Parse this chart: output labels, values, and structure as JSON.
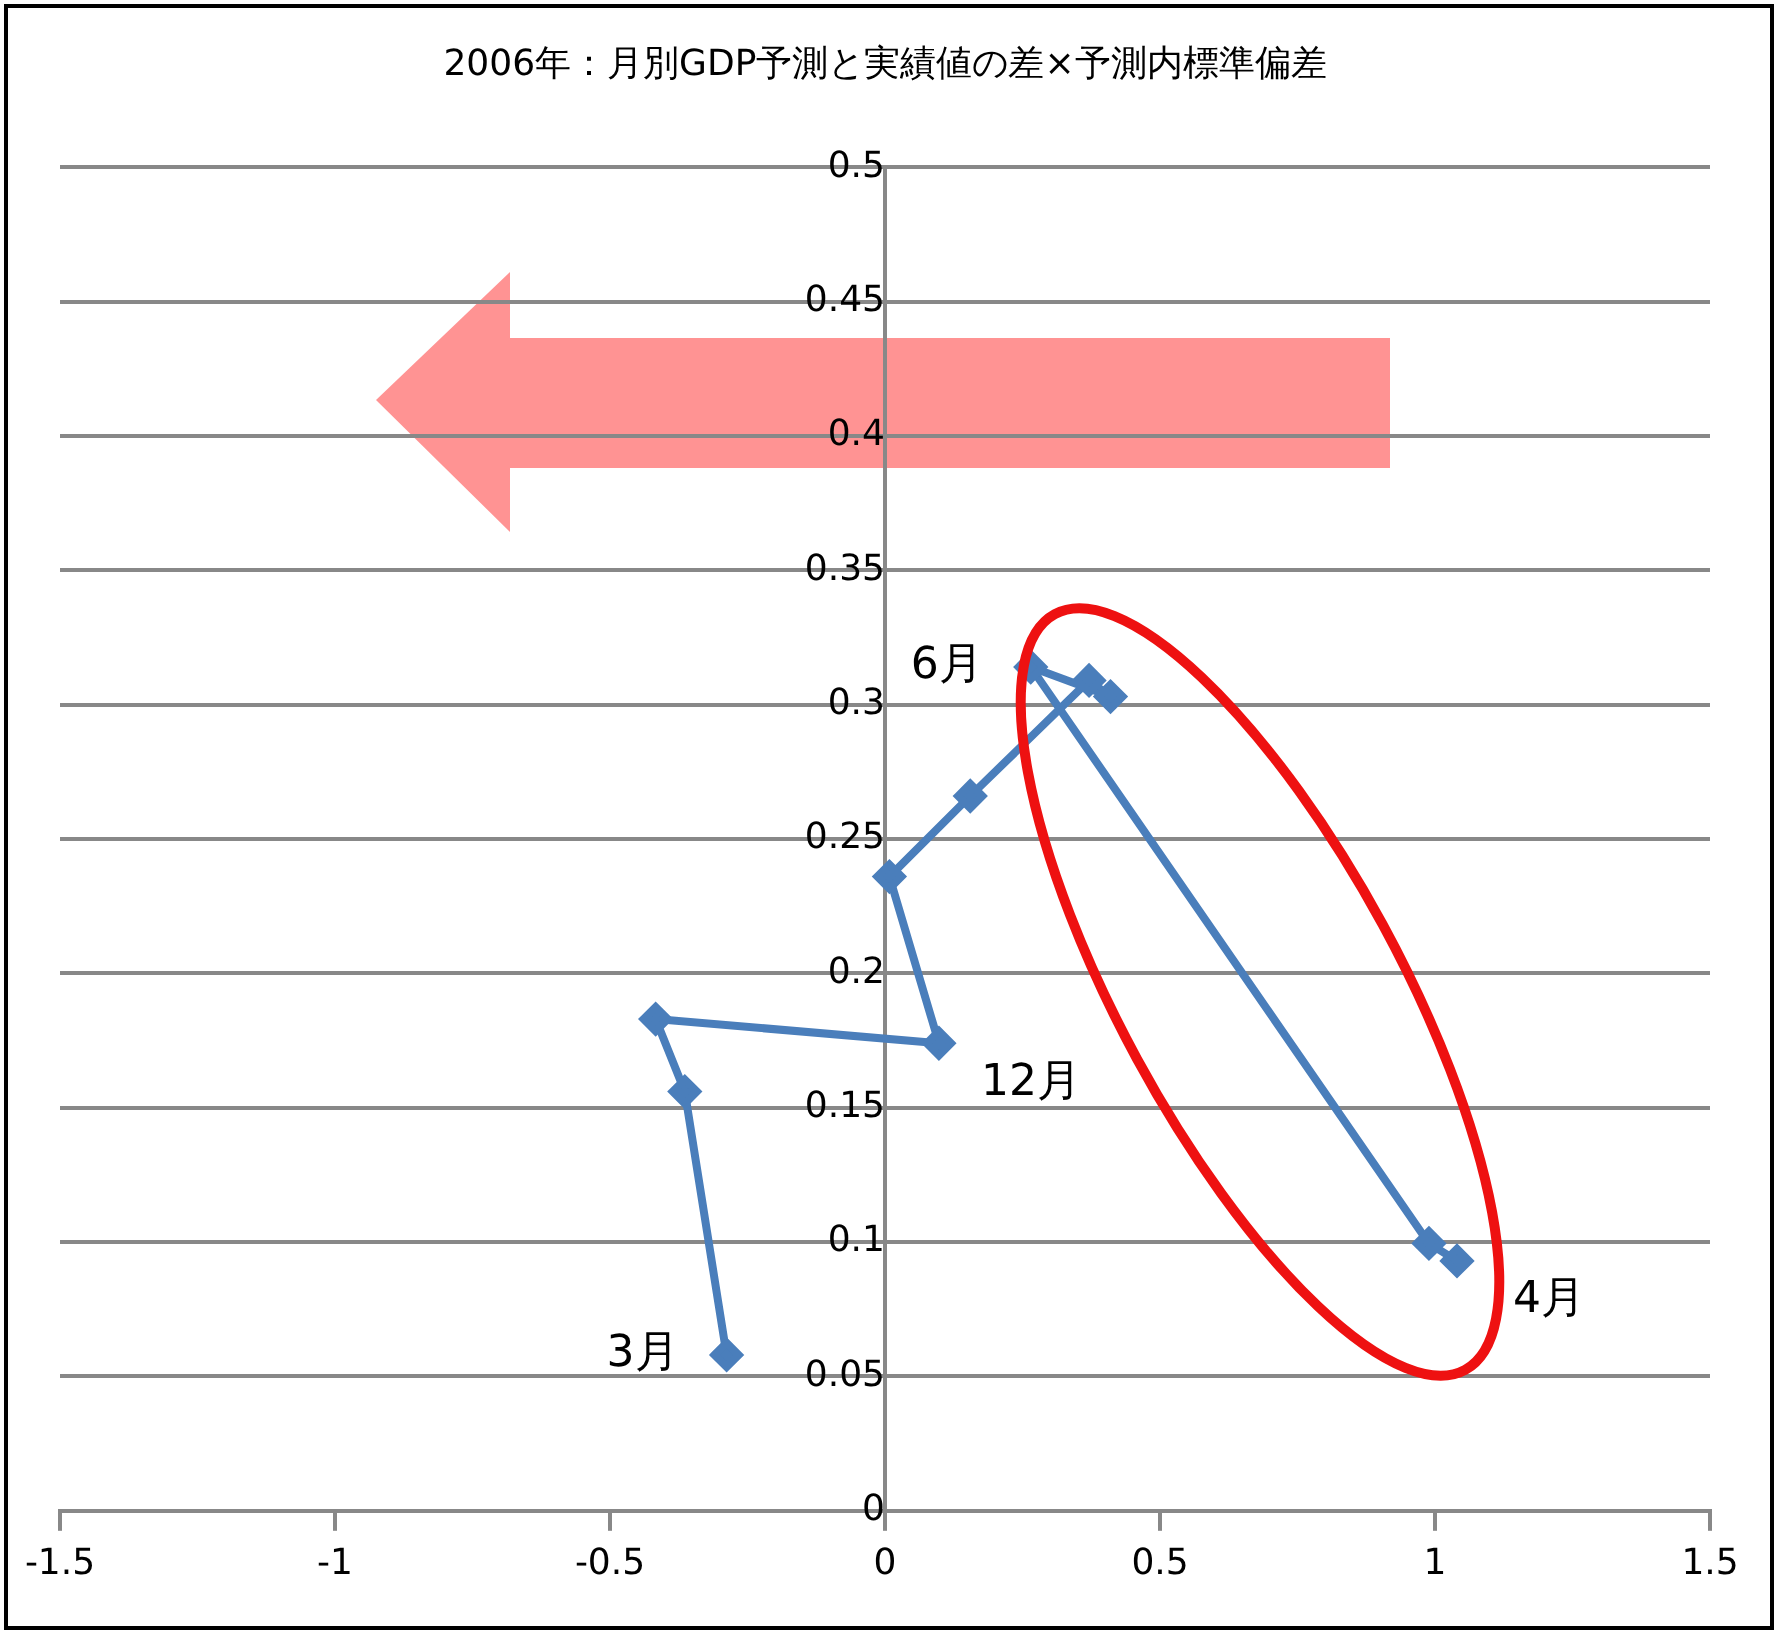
{
  "chart_data": {
    "type": "line",
    "title": "2006年：月別GDP予測と実績値の差×予測内標準偏差",
    "x": [
      -0.288,
      -0.364,
      -0.417,
      0.098,
      0.008,
      0.155,
      0.371,
      0.41,
      0.265,
      0.989,
      1.04
    ],
    "series": [
      {
        "color": "#4a7ebb",
        "values": [
          0.058,
          0.156,
          0.183,
          0.174,
          0.236,
          0.266,
          0.309,
          0.303,
          0.314,
          0.0995,
          0.093
        ]
      }
    ],
    "xlim": [
      -1.5,
      1.5
    ],
    "xticks": [
      -1.5,
      -1,
      -0.5,
      0,
      0.5,
      1,
      1.5
    ],
    "ylim": [
      0,
      0.5
    ],
    "yticks": [
      0,
      0.05,
      0.1,
      0.15,
      0.2,
      0.25,
      0.3,
      0.35,
      0.4,
      0.45,
      0.5
    ],
    "grid": "y",
    "marker": "diamond",
    "line_style": "solid",
    "legend": false,
    "annotations": [
      {
        "text": "3月",
        "x": -0.288,
        "y": 0.058
      },
      {
        "text": "4月",
        "x": 1.04,
        "y": 0.093
      },
      {
        "text": "6月",
        "x": 0.265,
        "y": 0.314
      },
      {
        "text": "12月",
        "x": 0.098,
        "y": 0.174
      }
    ]
  }
}
